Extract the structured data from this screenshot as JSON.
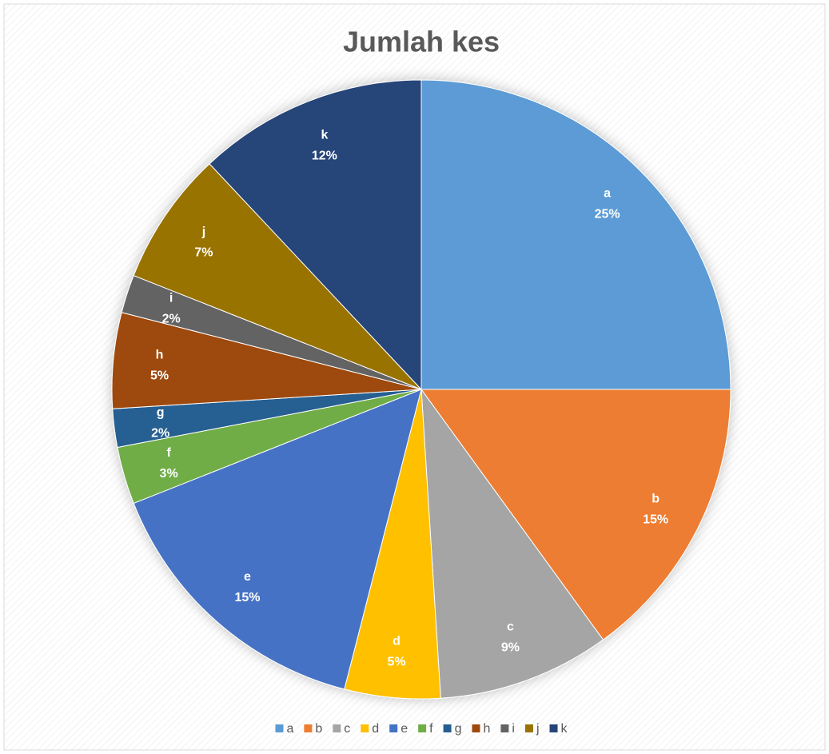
{
  "chart_data": {
    "type": "pie",
    "title": "Jumlah kes",
    "categories": [
      "a",
      "b",
      "c",
      "d",
      "e",
      "f",
      "g",
      "h",
      "i",
      "j",
      "k"
    ],
    "values": [
      25,
      15,
      9,
      5,
      15,
      3,
      2,
      5,
      2,
      7,
      12
    ],
    "value_labels": [
      "25%",
      "15%",
      "9%",
      "5%",
      "15%",
      "3%",
      "2%",
      "5%",
      "2%",
      "7%",
      "12%"
    ],
    "colors": [
      "#5b9bd5",
      "#ed7d31",
      "#a5a5a5",
      "#ffc000",
      "#4472c4",
      "#70ad47",
      "#255e91",
      "#9e480e",
      "#636363",
      "#997300",
      "#264478"
    ],
    "legend": "bottom"
  }
}
